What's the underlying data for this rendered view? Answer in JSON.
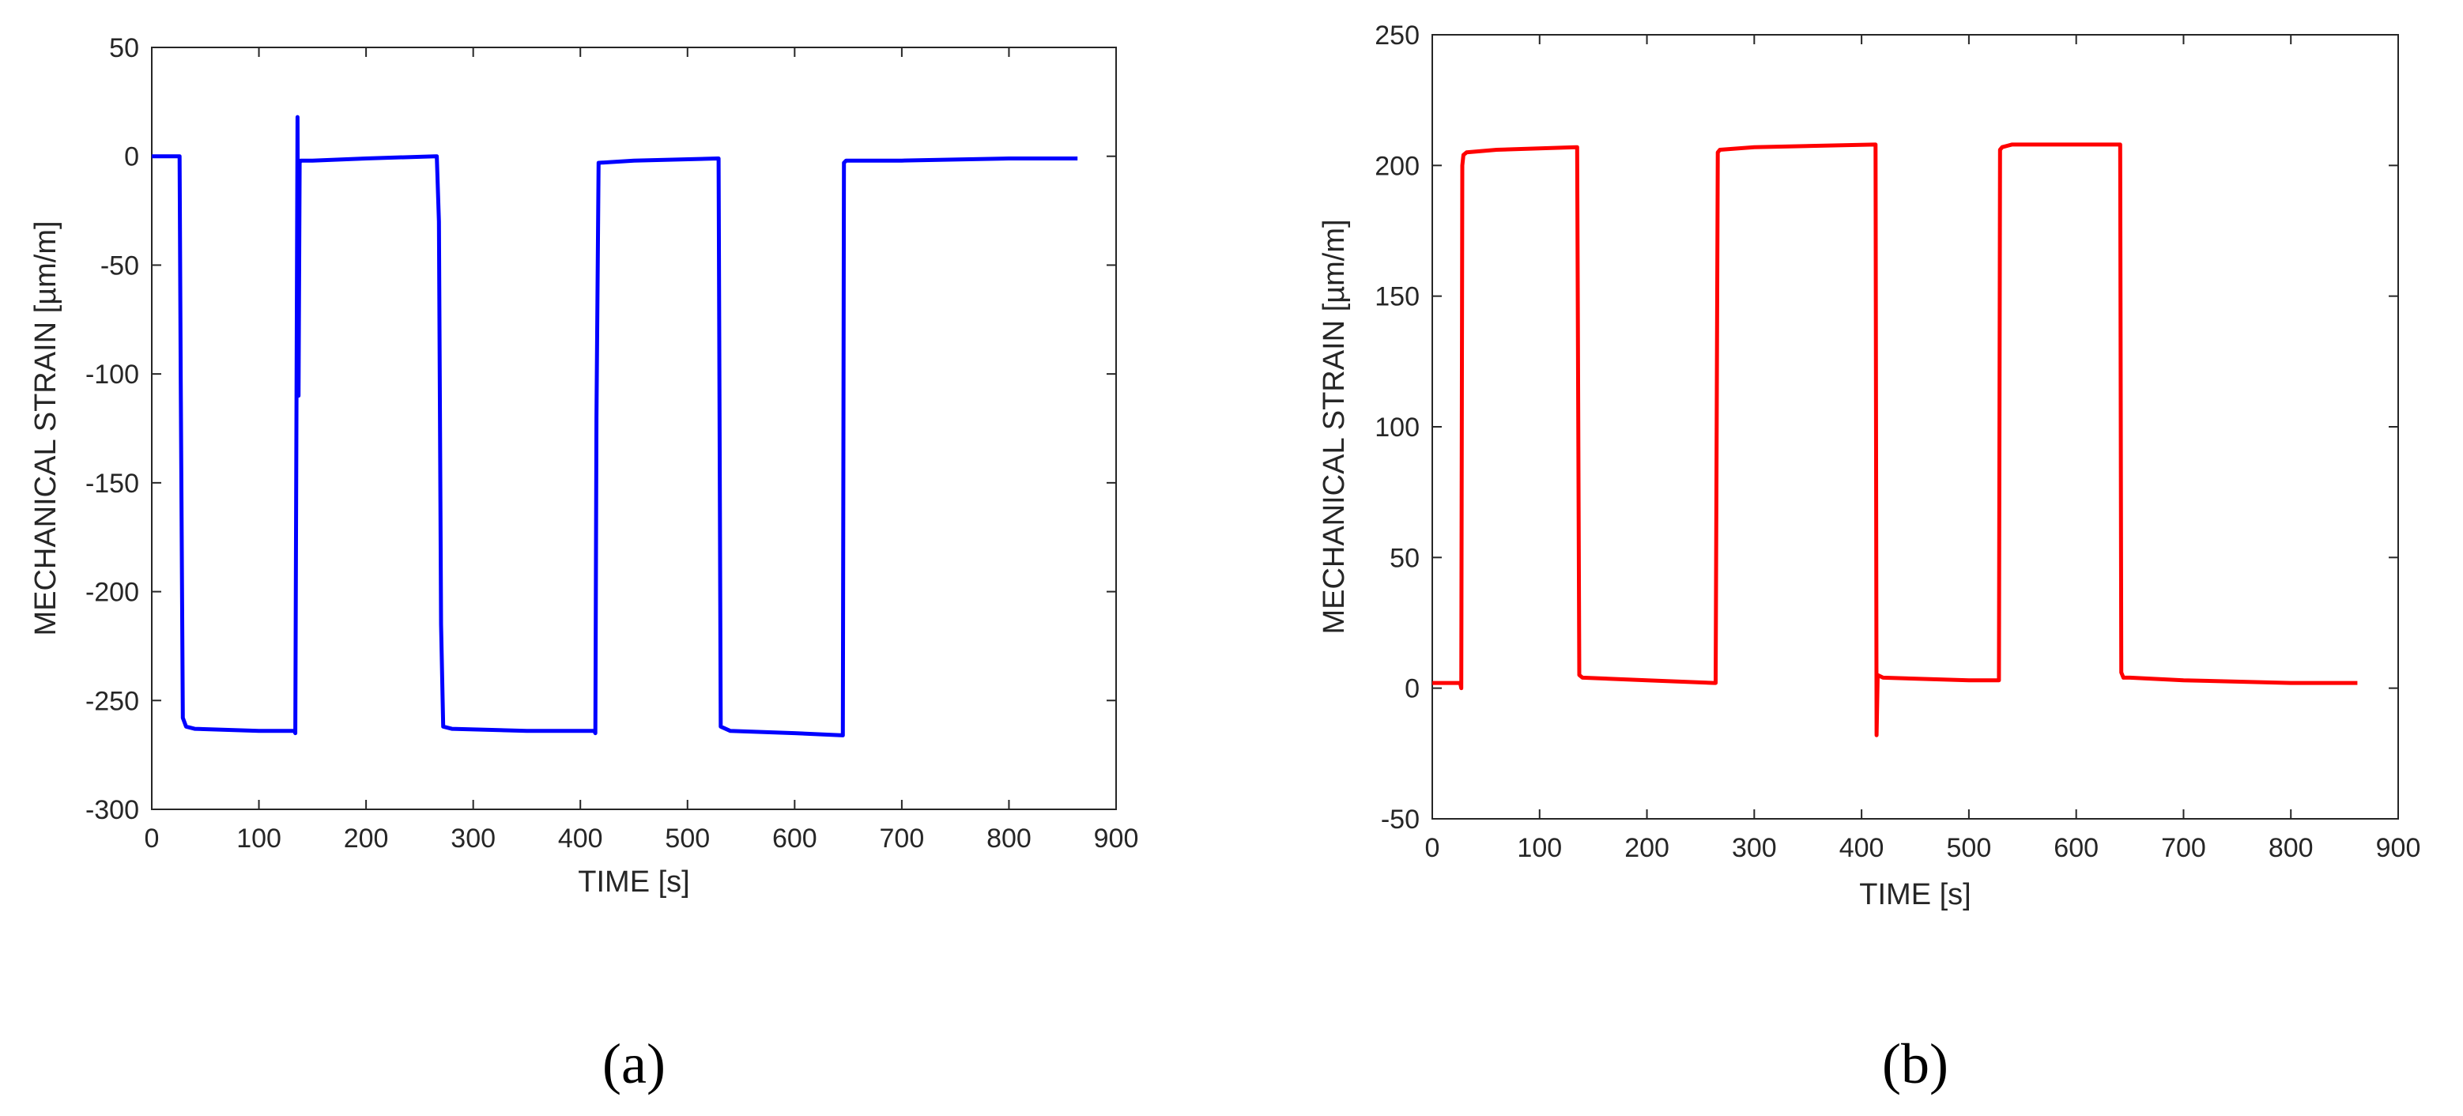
{
  "chart_data": [
    {
      "type": "line",
      "panel_label": "(a)",
      "xlabel": "TIME [s]",
      "ylabel": "MECHANICAL STRAIN [µm/m]",
      "xlim": [
        0,
        900
      ],
      "ylim": [
        -300,
        50
      ],
      "xticks": [
        0,
        100,
        200,
        300,
        400,
        500,
        600,
        700,
        800,
        900
      ],
      "yticks": [
        -300,
        -250,
        -200,
        -150,
        -100,
        -50,
        0,
        50
      ],
      "grid": false,
      "series": [
        {
          "color": "#0000ff",
          "x": [
            0,
            26,
            27,
            29,
            32,
            40,
            100,
            133,
            134,
            136,
            137,
            138,
            139,
            150,
            200,
            265,
            266,
            268,
            270,
            272,
            280,
            350,
            413,
            414,
            415,
            417,
            450,
            528,
            529,
            531,
            540,
            600,
            645,
            646,
            648,
            650,
            700,
            800,
            864
          ],
          "y": [
            0,
            0,
            -100,
            -258,
            -262,
            -263,
            -264,
            -264,
            -265,
            18,
            -110,
            -3,
            -2,
            -2,
            -1,
            0,
            0,
            -30,
            -215,
            -262,
            -263,
            -264,
            -264,
            -265,
            -120,
            -3,
            -2,
            -1,
            -1,
            -262,
            -264,
            -265,
            -266,
            -3,
            -2,
            -2,
            -2,
            -1,
            -1
          ]
        }
      ]
    },
    {
      "type": "line",
      "panel_label": "(b)",
      "xlabel": "TIME [s]",
      "ylabel": "MECHANICAL STRAIN [µm/m]",
      "xlim": [
        0,
        900
      ],
      "ylim": [
        -50,
        250
      ],
      "xticks": [
        0,
        100,
        200,
        300,
        400,
        500,
        600,
        700,
        800,
        900
      ],
      "yticks": [
        -50,
        0,
        50,
        100,
        150,
        200,
        250
      ],
      "grid": false,
      "series": [
        {
          "color": "#ff0000",
          "x": [
            0,
            26,
            27,
            28,
            29,
            32,
            60,
            134,
            135,
            137,
            140,
            200,
            263,
            264,
            266,
            268,
            300,
            412,
            413,
            414,
            415,
            420,
            500,
            528,
            529,
            531,
            540,
            600,
            641,
            642,
            644,
            650,
            700,
            800,
            862
          ],
          "y": [
            2,
            2,
            0,
            200,
            204,
            205,
            206,
            207,
            207,
            5,
            4,
            3,
            2,
            2,
            205,
            206,
            207,
            208,
            208,
            -18,
            5,
            4,
            3,
            3,
            206,
            207,
            208,
            208,
            208,
            6,
            4,
            4,
            3,
            2,
            2
          ]
        }
      ]
    }
  ]
}
